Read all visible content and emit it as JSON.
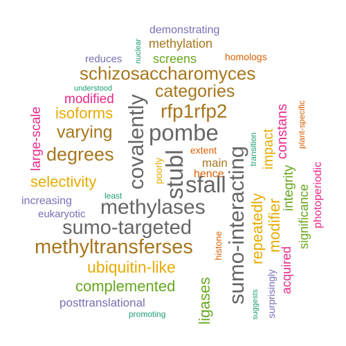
{
  "colors": {
    "purple": "#7570b3",
    "green": "#66a61e",
    "brown": "#a6761d",
    "gold": "#e6ab02",
    "magenta": "#e7298a",
    "teal": "#1b9e77",
    "orange": "#d95f02",
    "gray": "#666666"
  },
  "words": [
    {
      "text": "demonstrating",
      "color": "purple"
    },
    {
      "text": "nuclear",
      "color": "teal"
    },
    {
      "text": "methylation",
      "color": "brown"
    },
    {
      "text": "reduces",
      "color": "purple"
    },
    {
      "text": "screens",
      "color": "green"
    },
    {
      "text": "homologs",
      "color": "orange"
    },
    {
      "text": "schizosaccharomyces",
      "color": "brown"
    },
    {
      "text": "understood",
      "color": "teal"
    },
    {
      "text": "modified",
      "color": "magenta"
    },
    {
      "text": "categories",
      "color": "brown"
    },
    {
      "text": "large-scale",
      "color": "magenta"
    },
    {
      "text": "isoforms",
      "color": "gold"
    },
    {
      "text": "covalently",
      "color": "gray"
    },
    {
      "text": "rfp1rfp2",
      "color": "brown"
    },
    {
      "text": "varying",
      "color": "brown"
    },
    {
      "text": "pombe",
      "color": "gray"
    },
    {
      "text": "degrees",
      "color": "brown"
    },
    {
      "text": "stubl",
      "color": "gray"
    },
    {
      "text": "extent",
      "color": "orange"
    },
    {
      "text": "poorly",
      "color": "gold"
    },
    {
      "text": "main",
      "color": "brown"
    },
    {
      "text": "hence",
      "color": "orange"
    },
    {
      "text": "sfall",
      "color": "gray"
    },
    {
      "text": "sumo-interacting",
      "color": "gray"
    },
    {
      "text": "transition",
      "color": "teal"
    },
    {
      "text": "repeatedly",
      "color": "gold"
    },
    {
      "text": "impact",
      "color": "gold"
    },
    {
      "text": "constans",
      "color": "magenta"
    },
    {
      "text": "plant-specific",
      "color": "orange"
    },
    {
      "text": "photoperiodic",
      "color": "magenta"
    },
    {
      "text": "modifier",
      "color": "gold"
    },
    {
      "text": "integrity",
      "color": "green"
    },
    {
      "text": "significance",
      "color": "green"
    },
    {
      "text": "acquired",
      "color": "magenta"
    },
    {
      "text": "selectivity",
      "color": "gold"
    },
    {
      "text": "least",
      "color": "teal"
    },
    {
      "text": "increasing",
      "color": "purple"
    },
    {
      "text": "eukaryotic",
      "color": "purple"
    },
    {
      "text": "methylases",
      "color": "gray"
    },
    {
      "text": "sumo-targeted",
      "color": "gray"
    },
    {
      "text": "methyltransferses",
      "color": "brown"
    },
    {
      "text": "histone",
      "color": "orange"
    },
    {
      "text": "ubiquitin-like",
      "color": "gold"
    },
    {
      "text": "ligases",
      "color": "green"
    },
    {
      "text": "complemented",
      "color": "green"
    },
    {
      "text": "surprisingly",
      "color": "purple"
    },
    {
      "text": "suggests",
      "color": "teal"
    },
    {
      "text": "posttranslational",
      "color": "purple"
    },
    {
      "text": "promoting",
      "color": "teal"
    }
  ]
}
